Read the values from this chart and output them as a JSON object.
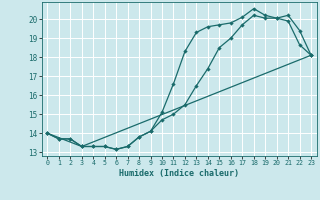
{
  "title": "",
  "xlabel": "Humidex (Indice chaleur)",
  "background_color": "#cce8ec",
  "grid_color": "#ffffff",
  "line_color": "#1a6b6b",
  "xlim": [
    -0.5,
    23.5
  ],
  "ylim": [
    12.8,
    20.9
  ],
  "xticks": [
    0,
    1,
    2,
    3,
    4,
    5,
    6,
    7,
    8,
    9,
    10,
    11,
    12,
    13,
    14,
    15,
    16,
    17,
    18,
    19,
    20,
    21,
    22,
    23
  ],
  "yticks": [
    13,
    14,
    15,
    16,
    17,
    18,
    19,
    20
  ],
  "line1_x": [
    0,
    1,
    2,
    3,
    4,
    5,
    6,
    7,
    8,
    9,
    10,
    11,
    12,
    13,
    14,
    15,
    16,
    17,
    18,
    19,
    20,
    21,
    22,
    23
  ],
  "line1_y": [
    14.0,
    13.7,
    13.7,
    13.3,
    13.3,
    13.3,
    13.15,
    13.3,
    13.8,
    14.1,
    14.7,
    15.0,
    15.5,
    16.5,
    17.4,
    18.5,
    19.0,
    19.7,
    20.2,
    20.05,
    20.05,
    20.2,
    19.4,
    18.1
  ],
  "line2_x": [
    0,
    1,
    2,
    3,
    4,
    5,
    6,
    7,
    8,
    9,
    10,
    11,
    12,
    13,
    14,
    15,
    16,
    17,
    18,
    19,
    20,
    21,
    22,
    23
  ],
  "line2_y": [
    14.0,
    13.7,
    13.7,
    13.3,
    13.3,
    13.3,
    13.15,
    13.3,
    13.8,
    14.1,
    15.1,
    16.6,
    18.3,
    19.3,
    19.6,
    19.7,
    19.8,
    20.1,
    20.55,
    20.2,
    20.05,
    19.9,
    18.65,
    18.1
  ],
  "line3_x": [
    0,
    3,
    23
  ],
  "line3_y": [
    14.0,
    13.3,
    18.1
  ]
}
